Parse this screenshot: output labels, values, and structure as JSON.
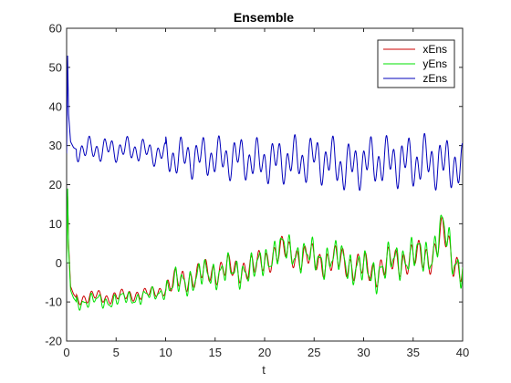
{
  "chart_data": {
    "type": "line",
    "title": "Ensemble",
    "xlabel": "t",
    "ylabel": "",
    "xlim": [
      0,
      40
    ],
    "ylim": [
      -20,
      60
    ],
    "xticks": [
      "0",
      "5",
      "10",
      "15",
      "20",
      "25",
      "30",
      "35",
      "40"
    ],
    "yticks": [
      "-20",
      "-10",
      "0",
      "10",
      "20",
      "30",
      "40",
      "50",
      "60"
    ],
    "grid": false,
    "legend_position": "top-right",
    "series": [
      {
        "name": "xEns",
        "color": "#cc0000",
        "x": [
          0,
          0.1,
          0.2,
          0.4,
          0.7,
          1,
          2,
          3,
          4,
          5,
          6,
          7,
          8,
          9,
          10,
          11,
          12,
          13,
          14,
          15,
          16,
          17,
          18,
          19,
          20,
          21,
          22,
          23,
          24,
          25,
          26,
          27,
          28,
          29,
          30,
          31,
          32,
          33,
          34,
          35,
          36,
          37,
          38,
          39,
          40
        ],
        "values": [
          1,
          17,
          5,
          -6,
          -8,
          -9,
          -9,
          -8.5,
          -9,
          -8.5,
          -8.5,
          -8,
          -8,
          -7.5,
          -6.5,
          -5,
          -4,
          -3.5,
          -2.5,
          -2,
          -1.5,
          -2,
          -1,
          -1.5,
          1,
          2,
          3,
          2.5,
          1,
          1,
          0.5,
          0,
          1,
          -1,
          -1.5,
          -2,
          -1,
          0,
          1,
          1,
          1.5,
          2,
          7.5,
          1,
          -1
        ]
      },
      {
        "name": "yEns",
        "color": "#00e000",
        "x": [
          0,
          0.1,
          0.2,
          0.4,
          0.7,
          1,
          2,
          3,
          4,
          5,
          6,
          7,
          8,
          9,
          10,
          11,
          12,
          13,
          14,
          15,
          16,
          17,
          18,
          19,
          20,
          21,
          22,
          23,
          24,
          25,
          26,
          27,
          28,
          29,
          30,
          31,
          32,
          33,
          34,
          35,
          36,
          37,
          38,
          39,
          40
        ],
        "values": [
          0,
          19,
          4,
          -7,
          -9,
          -10,
          -10,
          -9.5,
          -10,
          -9.5,
          -9,
          -9,
          -8.5,
          -8,
          -7,
          -5.5,
          -4.5,
          -4,
          -3,
          -2.5,
          -2,
          -2.5,
          -1.5,
          -2,
          1,
          2.5,
          3.5,
          3,
          1.5,
          1.5,
          1,
          0.5,
          1.5,
          -1.5,
          -2,
          -2.5,
          -1.5,
          0.5,
          1.5,
          1.5,
          2,
          2.5,
          9,
          1.5,
          -1.5
        ]
      },
      {
        "name": "zEns",
        "color": "#0000bb",
        "x": [
          0,
          0.1,
          0.2,
          0.4,
          0.7,
          1,
          2,
          3,
          4,
          5,
          6,
          7,
          8,
          9,
          10,
          11,
          12,
          13,
          14,
          15,
          16,
          17,
          18,
          19,
          20,
          21,
          22,
          23,
          24,
          25,
          26,
          27,
          28,
          29,
          30,
          31,
          32,
          33,
          34,
          35,
          36,
          37,
          38,
          39,
          40
        ],
        "values": [
          28,
          53,
          38,
          31,
          29.5,
          29,
          29,
          29,
          29,
          29,
          29,
          29,
          28.5,
          28,
          27.5,
          27,
          27,
          27,
          27,
          27,
          26.5,
          27,
          26.5,
          26,
          26,
          26,
          26,
          26.5,
          26,
          27,
          26,
          26,
          24,
          25,
          25.5,
          26,
          26,
          26,
          26,
          25.5,
          26,
          26,
          25,
          26,
          23
        ]
      }
    ]
  }
}
